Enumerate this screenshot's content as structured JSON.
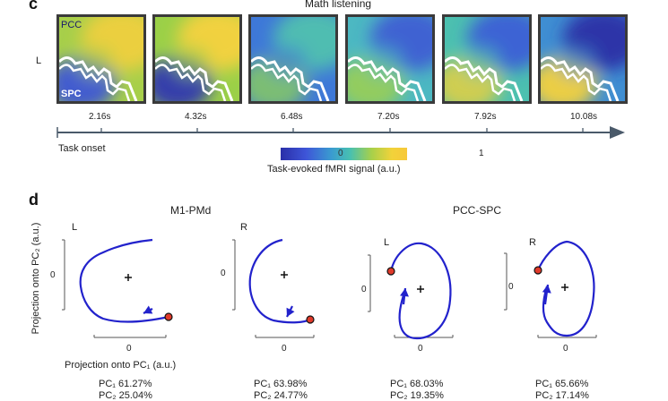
{
  "panel_c": {
    "letter": "c",
    "title": "Math listening",
    "hemisphere": "L",
    "region_top": "PCC",
    "region_bottom": "SPC",
    "times": [
      "2.16s",
      "4.32s",
      "6.48s",
      "7.20s",
      "7.92s",
      "10.08s"
    ],
    "axis_label": "Task onset",
    "colorbar": {
      "tick_low": "0",
      "tick_high": "1",
      "label": "Task-evoked fMRI signal (a.u.)",
      "colors": [
        "#2a2fa8",
        "#3e55d8",
        "#3a9bd0",
        "#48c0b0",
        "#a8d04a",
        "#f2d23a"
      ]
    }
  },
  "panel_d": {
    "letter": "d",
    "group1_title": "M1-PMd",
    "group2_title": "PCC-SPC",
    "ylabel": "Projection onto PC₂ (a.u.)",
    "xlabel": "Projection onto PC₁ (a.u.)",
    "plots": [
      {
        "hemi": "L",
        "zero_x": "0",
        "zero_y": "0",
        "pc1": "PC₁ 61.27%",
        "pc2": "PC₂ 25.04%"
      },
      {
        "hemi": "R",
        "zero_x": "0",
        "zero_y": "0",
        "pc1": "PC₁ 63.98%",
        "pc2": "PC₂ 24.77%"
      },
      {
        "hemi": "L",
        "zero_x": "0",
        "zero_y": "0",
        "pc1": "PC₁ 68.03%",
        "pc2": "PC₂ 19.35%"
      },
      {
        "hemi": "R",
        "zero_x": "0",
        "zero_y": "0",
        "pc1": "PC₁ 65.66%",
        "pc2": "PC₂ 17.14%"
      }
    ],
    "trajectory_color": "#2222cc",
    "start_marker_color": "#e03a2a"
  }
}
